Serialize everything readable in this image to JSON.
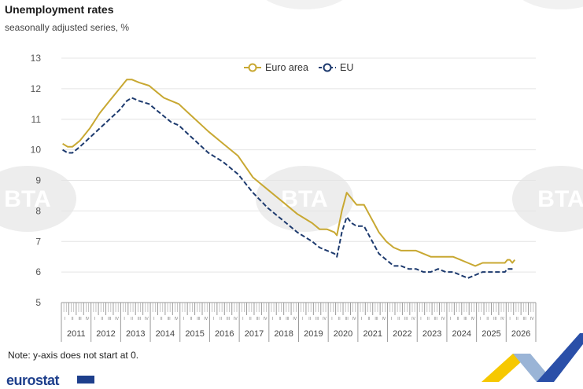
{
  "title": "Unemployment rates",
  "subtitle": "seasonally adjusted series, %",
  "note": "Note: y-axis does not start at 0.",
  "brand": "eurostat",
  "watermark": "BTA",
  "colors": {
    "euro_area": "#c8a832",
    "eu": "#1d3a6e",
    "grid": "#e4e4e4",
    "axis_text": "#555555"
  },
  "chart_data": {
    "type": "line",
    "title": "Unemployment rates",
    "subtitle": "seasonally adjusted series, %",
    "ylim": [
      5,
      13
    ],
    "yticks": [
      5,
      6,
      7,
      8,
      9,
      10,
      11,
      12,
      13
    ],
    "grid": true,
    "legend": "top-center",
    "quarter_labels": [
      "I",
      "II",
      "III",
      "IV"
    ],
    "years": [
      "2011",
      "2012",
      "2013",
      "2014",
      "2015",
      "2016",
      "2017",
      "2018",
      "2019",
      "2020",
      "2021",
      "2022",
      "2023",
      "2024",
      "2025",
      "2026"
    ],
    "series": [
      {
        "name": "Euro area",
        "style": "solid",
        "points": [
          [
            "2011-01",
            10.2
          ],
          [
            "2011-03",
            10.1
          ],
          [
            "2011-05",
            10.1
          ],
          [
            "2011-08",
            10.3
          ],
          [
            "2011-12",
            10.7
          ],
          [
            "2012-04",
            11.2
          ],
          [
            "2012-08",
            11.6
          ],
          [
            "2012-12",
            12.0
          ],
          [
            "2013-03",
            12.3
          ],
          [
            "2013-05",
            12.3
          ],
          [
            "2013-08",
            12.2
          ],
          [
            "2013-12",
            12.1
          ],
          [
            "2014-03",
            11.9
          ],
          [
            "2014-06",
            11.7
          ],
          [
            "2014-09",
            11.6
          ],
          [
            "2014-12",
            11.5
          ],
          [
            "2015-04",
            11.2
          ],
          [
            "2015-08",
            10.9
          ],
          [
            "2015-12",
            10.6
          ],
          [
            "2016-06",
            10.2
          ],
          [
            "2016-12",
            9.8
          ],
          [
            "2017-06",
            9.1
          ],
          [
            "2017-12",
            8.7
          ],
          [
            "2018-06",
            8.3
          ],
          [
            "2018-12",
            7.9
          ],
          [
            "2019-06",
            7.6
          ],
          [
            "2019-09",
            7.4
          ],
          [
            "2019-12",
            7.4
          ],
          [
            "2020-03",
            7.3
          ],
          [
            "2020-04",
            7.2
          ],
          [
            "2020-06",
            8.0
          ],
          [
            "2020-08",
            8.6
          ],
          [
            "2020-10",
            8.4
          ],
          [
            "2020-12",
            8.2
          ],
          [
            "2021-03",
            8.2
          ],
          [
            "2021-05",
            7.9
          ],
          [
            "2021-07",
            7.6
          ],
          [
            "2021-09",
            7.3
          ],
          [
            "2021-12",
            7.0
          ],
          [
            "2022-03",
            6.8
          ],
          [
            "2022-06",
            6.7
          ],
          [
            "2022-09",
            6.7
          ],
          [
            "2022-12",
            6.7
          ],
          [
            "2023-03",
            6.6
          ],
          [
            "2023-06",
            6.5
          ],
          [
            "2023-09",
            6.5
          ],
          [
            "2023-12",
            6.5
          ],
          [
            "2024-03",
            6.5
          ],
          [
            "2024-06",
            6.4
          ],
          [
            "2024-09",
            6.3
          ],
          [
            "2024-12",
            6.2
          ],
          [
            "2025-03",
            6.3
          ],
          [
            "2025-06",
            6.3
          ],
          [
            "2025-09",
            6.3
          ],
          [
            "2025-12",
            6.3
          ],
          [
            "2026-01",
            6.4
          ],
          [
            "2026-02",
            6.4
          ],
          [
            "2026-03",
            6.3
          ],
          [
            "2026-04",
            6.4
          ]
        ]
      },
      {
        "name": "EU",
        "style": "dashed",
        "points": [
          [
            "2011-01",
            10.0
          ],
          [
            "2011-03",
            9.9
          ],
          [
            "2011-05",
            9.9
          ],
          [
            "2011-08",
            10.1
          ],
          [
            "2011-12",
            10.4
          ],
          [
            "2012-04",
            10.7
          ],
          [
            "2012-08",
            11.0
          ],
          [
            "2012-12",
            11.3
          ],
          [
            "2013-03",
            11.6
          ],
          [
            "2013-05",
            11.7
          ],
          [
            "2013-08",
            11.6
          ],
          [
            "2013-12",
            11.5
          ],
          [
            "2014-03",
            11.3
          ],
          [
            "2014-06",
            11.1
          ],
          [
            "2014-09",
            10.9
          ],
          [
            "2014-12",
            10.8
          ],
          [
            "2015-04",
            10.5
          ],
          [
            "2015-08",
            10.2
          ],
          [
            "2015-12",
            9.9
          ],
          [
            "2016-06",
            9.6
          ],
          [
            "2016-12",
            9.2
          ],
          [
            "2017-06",
            8.6
          ],
          [
            "2017-12",
            8.1
          ],
          [
            "2018-06",
            7.7
          ],
          [
            "2018-12",
            7.3
          ],
          [
            "2019-06",
            7.0
          ],
          [
            "2019-09",
            6.8
          ],
          [
            "2019-12",
            6.7
          ],
          [
            "2020-03",
            6.6
          ],
          [
            "2020-04",
            6.5
          ],
          [
            "2020-06",
            7.3
          ],
          [
            "2020-08",
            7.8
          ],
          [
            "2020-10",
            7.6
          ],
          [
            "2020-12",
            7.5
          ],
          [
            "2021-03",
            7.5
          ],
          [
            "2021-05",
            7.2
          ],
          [
            "2021-07",
            6.9
          ],
          [
            "2021-09",
            6.6
          ],
          [
            "2021-12",
            6.4
          ],
          [
            "2022-03",
            6.2
          ],
          [
            "2022-06",
            6.2
          ],
          [
            "2022-09",
            6.1
          ],
          [
            "2022-12",
            6.1
          ],
          [
            "2023-03",
            6.0
          ],
          [
            "2023-06",
            6.0
          ],
          [
            "2023-09",
            6.1
          ],
          [
            "2023-12",
            6.0
          ],
          [
            "2024-03",
            6.0
          ],
          [
            "2024-06",
            5.9
          ],
          [
            "2024-09",
            5.8
          ],
          [
            "2024-12",
            5.9
          ],
          [
            "2025-03",
            6.0
          ],
          [
            "2025-06",
            6.0
          ],
          [
            "2025-09",
            6.0
          ],
          [
            "2025-12",
            6.0
          ],
          [
            "2026-01",
            6.1
          ],
          [
            "2026-02",
            6.1
          ],
          [
            "2026-03",
            6.1
          ],
          [
            "2026-04",
            6.1
          ]
        ]
      }
    ]
  }
}
